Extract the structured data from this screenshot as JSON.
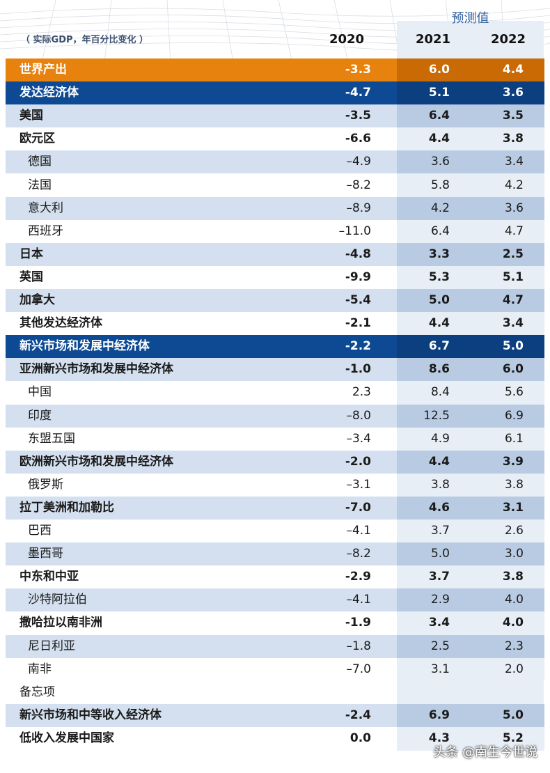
{
  "header": {
    "forecast_label": "预测值",
    "unit_label": "（ 实际GDP，年百分比变化 ）",
    "years": [
      "2020",
      "2021",
      "2022"
    ]
  },
  "rows": [
    {
      "name": "世界产出",
      "v2020": "-3.3",
      "v2021": "6.0",
      "v2022": "4.4",
      "style": "world",
      "indent": 1
    },
    {
      "name": "发达经济体",
      "v2020": "-4.7",
      "v2021": "5.1",
      "v2022": "3.6",
      "style": "group",
      "indent": 1
    },
    {
      "name": "美国",
      "v2020": "-3.5",
      "v2021": "6.4",
      "v2022": "3.5",
      "style": "alt",
      "indent": 1,
      "bold": true
    },
    {
      "name": "欧元区",
      "v2020": "-6.6",
      "v2021": "4.4",
      "v2022": "3.8",
      "style": "white",
      "indent": 1,
      "bold": true
    },
    {
      "name": "德国",
      "v2020": "–4.9",
      "v2021": "3.6",
      "v2022": "3.4",
      "style": "alt",
      "indent": 2
    },
    {
      "name": "法国",
      "v2020": "–8.2",
      "v2021": "5.8",
      "v2022": "4.2",
      "style": "white",
      "indent": 2
    },
    {
      "name": "意大利",
      "v2020": "–8.9",
      "v2021": "4.2",
      "v2022": "3.6",
      "style": "alt",
      "indent": 2
    },
    {
      "name": "西班牙",
      "v2020": "–11.0",
      "v2021": "6.4",
      "v2022": "4.7",
      "style": "white",
      "indent": 2
    },
    {
      "name": "日本",
      "v2020": "-4.8",
      "v2021": "3.3",
      "v2022": "2.5",
      "style": "alt",
      "indent": 1,
      "bold": true
    },
    {
      "name": "英国",
      "v2020": "-9.9",
      "v2021": "5.3",
      "v2022": "5.1",
      "style": "white",
      "indent": 1,
      "bold": true
    },
    {
      "name": "加拿大",
      "v2020": "-5.4",
      "v2021": "5.0",
      "v2022": "4.7",
      "style": "alt",
      "indent": 1,
      "bold": true
    },
    {
      "name": "其他发达经济体",
      "v2020": "-2.1",
      "v2021": "4.4",
      "v2022": "3.4",
      "style": "white",
      "indent": 1,
      "bold": true
    },
    {
      "name": "新兴市场和发展中经济体",
      "v2020": "-2.2",
      "v2021": "6.7",
      "v2022": "5.0",
      "style": "group",
      "indent": 1
    },
    {
      "name": "亚洲新兴市场和发展中经济体",
      "v2020": "-1.0",
      "v2021": "8.6",
      "v2022": "6.0",
      "style": "alt",
      "indent": 1,
      "bold": true
    },
    {
      "name": "中国",
      "v2020": "2.3",
      "v2021": "8.4",
      "v2022": "5.6",
      "style": "white",
      "indent": 2
    },
    {
      "name": "印度",
      "v2020": "–8.0",
      "v2021": "12.5",
      "v2022": "6.9",
      "style": "alt",
      "indent": 2
    },
    {
      "name": "东盟五国",
      "v2020": "–3.4",
      "v2021": "4.9",
      "v2022": "6.1",
      "style": "white",
      "indent": 2
    },
    {
      "name": "欧洲新兴市场和发展中经济体",
      "v2020": "-2.0",
      "v2021": "4.4",
      "v2022": "3.9",
      "style": "alt",
      "indent": 1,
      "bold": true
    },
    {
      "name": "俄罗斯",
      "v2020": "–3.1",
      "v2021": "3.8",
      "v2022": "3.8",
      "style": "white",
      "indent": 2
    },
    {
      "name": "拉丁美洲和加勒比",
      "v2020": "-7.0",
      "v2021": "4.6",
      "v2022": "3.1",
      "style": "alt",
      "indent": 1,
      "bold": true
    },
    {
      "name": "巴西",
      "v2020": "–4.1",
      "v2021": "3.7",
      "v2022": "2.6",
      "style": "white",
      "indent": 2
    },
    {
      "name": "墨西哥",
      "v2020": "–8.2",
      "v2021": "5.0",
      "v2022": "3.0",
      "style": "alt",
      "indent": 2
    },
    {
      "name": "中东和中亚",
      "v2020": "-2.9",
      "v2021": "3.7",
      "v2022": "3.8",
      "style": "white",
      "indent": 1,
      "bold": true
    },
    {
      "name": "沙特阿拉伯",
      "v2020": "–4.1",
      "v2021": "2.9",
      "v2022": "4.0",
      "style": "alt",
      "indent": 2
    },
    {
      "name": "撒哈拉以南非洲",
      "v2020": "-1.9",
      "v2021": "3.4",
      "v2022": "4.0",
      "style": "white",
      "indent": 1,
      "bold": true
    },
    {
      "name": "尼日利亚",
      "v2020": "–1.8",
      "v2021": "2.5",
      "v2022": "2.3",
      "style": "alt",
      "indent": 2
    },
    {
      "name": "南非",
      "v2020": "–7.0",
      "v2021": "3.1",
      "v2022": "2.0",
      "style": "white",
      "indent": 2
    },
    {
      "name": "备忘项",
      "v2020": "",
      "v2021": "",
      "v2022": "",
      "style": "memo",
      "indent": 1
    },
    {
      "name": "新兴市场和中等收入经济体",
      "v2020": "-2.4",
      "v2021": "6.9",
      "v2022": "5.0",
      "style": "alt",
      "indent": 1,
      "bold": true
    },
    {
      "name": "低收入发展中国家",
      "v2020": "0.0",
      "v2021": "4.3",
      "v2022": "5.2",
      "style": "white",
      "indent": 1,
      "bold": true
    }
  ],
  "watermark": "头条 @南生今世说",
  "colors": {
    "world_row": "#e8820e",
    "group_row": "#0d4a93",
    "alt_row": "#cddaec",
    "forecast_shade": "#e7eef6",
    "forecast_label": "#2f5f9e"
  }
}
